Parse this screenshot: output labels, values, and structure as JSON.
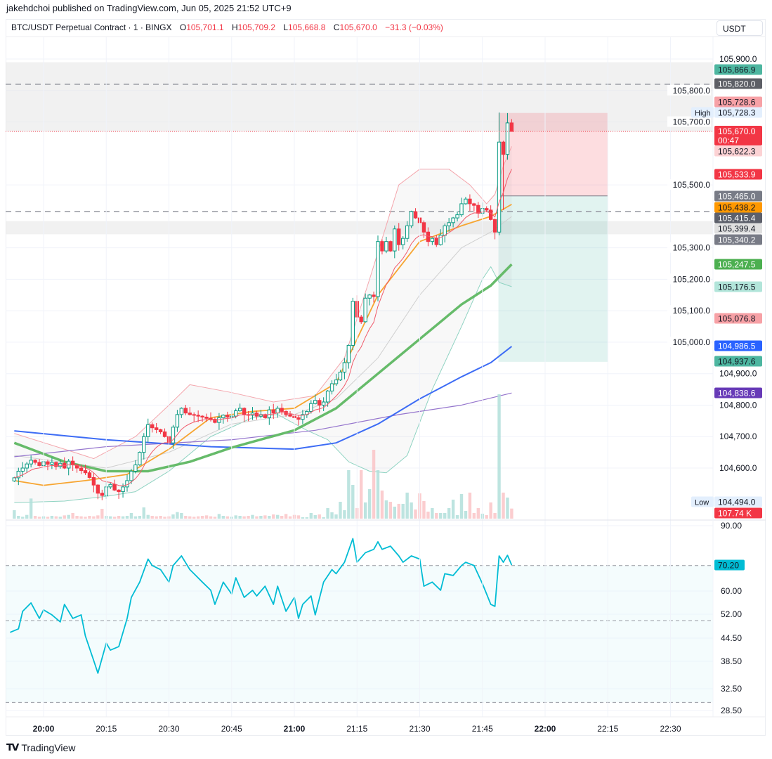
{
  "header": {
    "published": "jakehdchoi published on TradingView.com, Jun 05, 2025 21:52 UTC+9",
    "symbol": "BTC/USDT Perpetual Contract · 1 · BINGX",
    "o_label": "O",
    "o": "105,701.1",
    "h_label": "H",
    "h": "105,709.2",
    "l_label": "L",
    "l": "105,668.8",
    "c_label": "C",
    "c": "105,670.0",
    "change": "−31.3 (−0.03%)",
    "currency": "USDT"
  },
  "footer": {
    "brand": "TradingView",
    "logo": "TV"
  },
  "colors": {
    "up": "#089981",
    "down": "#f23645",
    "rsi": "#00bcd4",
    "ema_fast": "#f05a6a",
    "ema_mid": "#f7a531",
    "ema_slow": "#66bb6a",
    "ma_blue": "#3d6cf5",
    "ma_purple": "#9575cd",
    "bb": "#f4a6ad",
    "bb_lower": "#8fd3c2"
  },
  "chart_data": {
    "type": "candlestick",
    "interval_minutes": 1,
    "first_candle_time": "19:53",
    "closes": [
      104569,
      104590,
      104600,
      104613,
      104625,
      104618,
      104608,
      104620,
      104612,
      104618,
      104605,
      104615,
      104600,
      104622,
      104610,
      104600,
      104592,
      104585,
      104570,
      104546,
      104520,
      104513,
      104540,
      104548,
      104530,
      104525,
      104540,
      104560,
      104590,
      104610,
      104650,
      104700,
      104738,
      104728,
      104722,
      104715,
      104700,
      104680,
      104730,
      104770,
      104790,
      104775,
      104770,
      104768,
      104765,
      104762,
      104758,
      104755,
      104745,
      104760,
      104768,
      104762,
      104765,
      104782,
      104790,
      104770,
      104768,
      104775,
      104765,
      104770,
      104760,
      104785,
      104775,
      104790,
      104780,
      104770,
      104765,
      104760,
      104755,
      104770,
      104780,
      104805,
      104815,
      104800,
      104810,
      104845,
      104868,
      104880,
      104905,
      104935,
      104990,
      105130,
      105080,
      105065,
      105140,
      105150,
      105145,
      105320,
      105290,
      105320,
      105290,
      105360,
      105310,
      105330,
      105370,
      105415,
      105395,
      105380,
      105350,
      105320,
      105330,
      105310,
      105340,
      105370,
      105380,
      105395,
      105405,
      105440,
      105455,
      105440,
      105435,
      105410,
      105425,
      105420,
      105390,
      105350,
      105636,
      105597,
      105697,
      105670
    ],
    "high_overrides": {
      "116": 105730,
      "117": 105640,
      "118": 105728.3,
      "119": 105709.2
    },
    "low_overrides": {
      "116": 105340,
      "117": 105420,
      "118": 105580,
      "119": 105668.8
    },
    "volumes_k": [
      90,
      30,
      20,
      40,
      215,
      30,
      20,
      25,
      20,
      30,
      25,
      20,
      35,
      40,
      60,
      30,
      25,
      20,
      30,
      25,
      35,
      105,
      30,
      25,
      20,
      30,
      25,
      30,
      60,
      25,
      30,
      120,
      40,
      30,
      25,
      30,
      20,
      25,
      45,
      70,
      60,
      30,
      25,
      20,
      25,
      30,
      35,
      25,
      20,
      50,
      30,
      25,
      20,
      35,
      30,
      25,
      30,
      40,
      25,
      30,
      35,
      30,
      45,
      40,
      30,
      50,
      25,
      40,
      35,
      15,
      15,
      60,
      38,
      45,
      15,
      113,
      68,
      45,
      180,
      90,
      518,
      360,
      113,
      518,
      173,
      315,
      735,
      518,
      300,
      195,
      180,
      128,
      158,
      158,
      278,
      173,
      98,
      270,
      188,
      75,
      113,
      60,
      60,
      60,
      113,
      203,
      38,
      263,
      83,
      278,
      60,
      113,
      53,
      38,
      173,
      60,
      1328,
      278,
      225,
      107.74
    ],
    "lines": {
      "ema_mid": [
        [
          "19:53",
          104560
        ],
        [
          "20:00",
          104545
        ],
        [
          "20:10",
          104560
        ],
        [
          "20:20",
          104580
        ],
        [
          "20:30",
          104660
        ],
        [
          "20:40",
          104760
        ],
        [
          "20:50",
          104780
        ],
        [
          "21:00",
          104790
        ],
        [
          "21:10",
          104870
        ],
        [
          "21:20",
          105150
        ],
        [
          "21:30",
          105320
        ],
        [
          "21:40",
          105370
        ],
        [
          "21:47",
          105400
        ],
        [
          "21:52",
          105438.2
        ]
      ],
      "ema_slow": [
        [
          "19:53",
          104680
        ],
        [
          "20:05",
          104620
        ],
        [
          "20:15",
          104590
        ],
        [
          "20:25",
          104590
        ],
        [
          "20:35",
          104620
        ],
        [
          "20:45",
          104665
        ],
        [
          "21:00",
          104720
        ],
        [
          "21:10",
          104790
        ],
        [
          "21:20",
          104900
        ],
        [
          "21:30",
          105010
        ],
        [
          "21:40",
          105120
        ],
        [
          "21:47",
          105180
        ],
        [
          "21:52",
          105247.5
        ]
      ],
      "ma_blue": [
        [
          "19:53",
          104718
        ],
        [
          "20:15",
          104690
        ],
        [
          "20:40",
          104668
        ],
        [
          "21:00",
          104660
        ],
        [
          "21:10",
          104680
        ],
        [
          "21:20",
          104740
        ],
        [
          "21:30",
          104820
        ],
        [
          "21:40",
          104890
        ],
        [
          "21:47",
          104935
        ],
        [
          "21:52",
          104986.5
        ]
      ],
      "ma_purple": [
        [
          "19:53",
          104636
        ],
        [
          "20:15",
          104668
        ],
        [
          "20:45",
          104690
        ],
        [
          "21:05",
          104720
        ],
        [
          "21:25",
          104770
        ],
        [
          "21:40",
          104800
        ],
        [
          "21:52",
          104838.6
        ]
      ],
      "bb_upper": [
        [
          "19:53",
          104710
        ],
        [
          "20:05",
          104660
        ],
        [
          "20:12",
          104630
        ],
        [
          "20:22",
          104700
        ],
        [
          "20:30",
          104800
        ],
        [
          "20:35",
          104865
        ],
        [
          "20:45",
          104840
        ],
        [
          "20:55",
          104810
        ],
        [
          "21:05",
          104830
        ],
        [
          "21:12",
          104950
        ],
        [
          "21:18",
          105200
        ],
        [
          "21:25",
          105500
        ],
        [
          "21:30",
          105550
        ],
        [
          "21:37",
          105550
        ],
        [
          "21:42",
          105500
        ],
        [
          "21:46",
          105440
        ],
        [
          "21:48",
          105470
        ],
        [
          "21:50",
          105560
        ],
        [
          "21:52",
          105622.3
        ]
      ],
      "bb_mid": [
        [
          "19:53",
          104640
        ],
        [
          "20:15",
          104600
        ],
        [
          "20:30",
          104650
        ],
        [
          "20:45",
          104740
        ],
        [
          "21:00",
          104770
        ],
        [
          "21:10",
          104820
        ],
        [
          "21:20",
          104950
        ],
        [
          "21:30",
          105150
        ],
        [
          "21:40",
          105300
        ],
        [
          "21:47",
          105350
        ],
        [
          "21:52",
          105399.4
        ]
      ],
      "bb_lower": [
        [
          "19:53",
          104490
        ],
        [
          "20:05",
          104495
        ],
        [
          "20:15",
          104510
        ],
        [
          "20:22",
          104525
        ],
        [
          "20:30",
          104590
        ],
        [
          "20:40",
          104700
        ],
        [
          "20:50",
          104760
        ],
        [
          "20:56",
          104770
        ],
        [
          "21:03",
          104720
        ],
        [
          "21:08",
          104690
        ],
        [
          "21:13",
          104620
        ],
        [
          "21:18",
          104590
        ],
        [
          "21:22",
          104585
        ],
        [
          "21:27",
          104640
        ],
        [
          "21:33",
          104850
        ],
        [
          "21:40",
          105050
        ],
        [
          "21:45",
          105200
        ],
        [
          "21:47",
          105240
        ],
        [
          "21:49",
          105190
        ],
        [
          "21:52",
          105176.5
        ]
      ]
    },
    "position": {
      "entry": 105465.0,
      "stop": 105728.6,
      "target": 104937.6,
      "from": "21:49",
      "to": "22:15"
    },
    "zones": [
      [
        105670,
        105890
      ],
      [
        105343,
        105385
      ]
    ],
    "dashed_levels": [
      105820.0,
      105415.4
    ],
    "current_price": 105670.0,
    "price_ticks": [
      "105,900.0",
      "105,800.0",
      "105,700.0",
      "105,500.0",
      "105,300.0",
      "105,200.0",
      "105,100.0",
      "105,000.0",
      "104,900.0",
      "104,800.0",
      "104,700.0",
      "104,600.0"
    ],
    "time_ticks": [
      "20:00",
      "20:15",
      "20:30",
      "20:45",
      "21:00",
      "21:15",
      "21:30",
      "21:45",
      "22:00",
      "22:15",
      "22:30"
    ],
    "price_labels": [
      {
        "text": "105,866.9",
        "bg": "#4db6a0",
        "fg": "#131722"
      },
      {
        "text": "105,820.0",
        "bg": "#5d5f66",
        "fg": "#ffffff"
      },
      {
        "text": "105,728.6",
        "bg": "#f7a1a6",
        "fg": "#131722"
      },
      {
        "text": "105,728.3",
        "bg": "#e3effd",
        "fg": "#131722",
        "tag": "High"
      },
      {
        "text": "105,670.0",
        "sub": "00:47",
        "bg": "#f23645",
        "fg": "#ffffff"
      },
      {
        "text": "105,622.3",
        "bg": "#fcd2d4",
        "fg": "#131722"
      },
      {
        "text": "105,533.9",
        "bg": "#f23645",
        "fg": "#ffffff"
      },
      {
        "text": "105,465.0",
        "bg": "#787b86",
        "fg": "#ffffff"
      },
      {
        "text": "105,438.2",
        "bg": "#ff9800",
        "fg": "#131722"
      },
      {
        "text": "105,415.4",
        "bg": "#5d606b",
        "fg": "#ffffff"
      },
      {
        "text": "105,399.4",
        "bg": "#e0e0e0",
        "fg": "#131722"
      },
      {
        "text": "105,340.2",
        "bg": "#787b86",
        "fg": "#ffffff"
      },
      {
        "text": "105,247.5",
        "bg": "#4caf50",
        "fg": "#ffffff"
      },
      {
        "text": "105,176.5",
        "bg": "#b2e5da",
        "fg": "#131722"
      },
      {
        "text": "105,076.8",
        "bg": "#f7a1a6",
        "fg": "#131722"
      },
      {
        "text": "104,986.5",
        "bg": "#2962ff",
        "fg": "#ffffff"
      },
      {
        "text": "104,937.6",
        "bg": "#4db6a0",
        "fg": "#131722"
      },
      {
        "text": "104,838.6",
        "bg": "#673ab7",
        "fg": "#ffffff"
      },
      {
        "text": "104,494.0",
        "bg": "#e3effd",
        "fg": "#131722",
        "tag": "Low"
      },
      {
        "text": "107.74 K",
        "bg": "#f23645",
        "fg": "#ffffff"
      }
    ],
    "rsi": {
      "current": "70.20",
      "levels": [
        70,
        50,
        30
      ],
      "ticks": [
        "90.00",
        "60.00",
        "52.00",
        "44.50",
        "38.50",
        "32.50",
        "28.50"
      ],
      "points": [
        [
          "19:52",
          46.3
        ],
        [
          "19:54",
          47.4
        ],
        [
          "19:55",
          53.0
        ],
        [
          "19:57",
          55.9
        ],
        [
          "19:59",
          50.7
        ],
        [
          "20:00",
          53.5
        ],
        [
          "20:02",
          51.8
        ],
        [
          "20:04",
          49.6
        ],
        [
          "20:05",
          55.4
        ],
        [
          "20:07",
          50.7
        ],
        [
          "20:09",
          51.8
        ],
        [
          "20:10",
          45.2
        ],
        [
          "20:12",
          38.7
        ],
        [
          "20:13",
          35.9
        ],
        [
          "20:15",
          43.2
        ],
        [
          "20:16",
          41.4
        ],
        [
          "20:18",
          42.3
        ],
        [
          "20:20",
          50.7
        ],
        [
          "20:21",
          57.8
        ],
        [
          "20:23",
          63.5
        ],
        [
          "20:25",
          73.2
        ],
        [
          "20:26",
          70.0
        ],
        [
          "20:28",
          68.4
        ],
        [
          "20:30",
          63.5
        ],
        [
          "20:31",
          70.0
        ],
        [
          "20:33",
          74.8
        ],
        [
          "20:35",
          68.4
        ],
        [
          "20:36",
          66.8
        ],
        [
          "20:38",
          63.5
        ],
        [
          "20:40",
          60.3
        ],
        [
          "20:41",
          55.4
        ],
        [
          "20:43",
          63.5
        ],
        [
          "20:45",
          59.0
        ],
        [
          "20:46",
          65.2
        ],
        [
          "20:48",
          57.8
        ],
        [
          "20:50",
          60.3
        ],
        [
          "20:51",
          58.3
        ],
        [
          "20:53",
          61.9
        ],
        [
          "20:55",
          55.4
        ],
        [
          "20:56",
          61.9
        ],
        [
          "20:58",
          53.0
        ],
        [
          "21:00",
          57.8
        ],
        [
          "21:01",
          50.7
        ],
        [
          "21:02",
          55.4
        ],
        [
          "21:04",
          58.3
        ],
        [
          "21:05",
          51.8
        ],
        [
          "21:07",
          63.5
        ],
        [
          "21:09",
          68.4
        ],
        [
          "21:10",
          66.8
        ],
        [
          "21:12",
          71.6
        ],
        [
          "21:14",
          83.5
        ],
        [
          "21:15",
          71.6
        ],
        [
          "21:17",
          76.4
        ],
        [
          "21:19",
          78.1
        ],
        [
          "21:20",
          81.9
        ],
        [
          "21:21",
          78.1
        ],
        [
          "21:23",
          79.7
        ],
        [
          "21:25",
          74.8
        ],
        [
          "21:26",
          71.6
        ],
        [
          "21:28",
          74.8
        ],
        [
          "21:30",
          73.2
        ],
        [
          "21:31",
          61.9
        ],
        [
          "21:33",
          63.5
        ],
        [
          "21:35",
          60.3
        ],
        [
          "21:36",
          66.8
        ],
        [
          "21:38",
          66.1
        ],
        [
          "21:40",
          70.0
        ],
        [
          "21:41",
          71.6
        ],
        [
          "21:43",
          70.0
        ],
        [
          "21:45",
          62.9
        ],
        [
          "21:46",
          59.0
        ],
        [
          "21:47",
          55.4
        ],
        [
          "21:48",
          54.7
        ],
        [
          "21:49",
          74.8
        ],
        [
          "21:50",
          71.6
        ],
        [
          "21:51",
          75.1
        ],
        [
          "21:52",
          70.2
        ]
      ]
    }
  }
}
